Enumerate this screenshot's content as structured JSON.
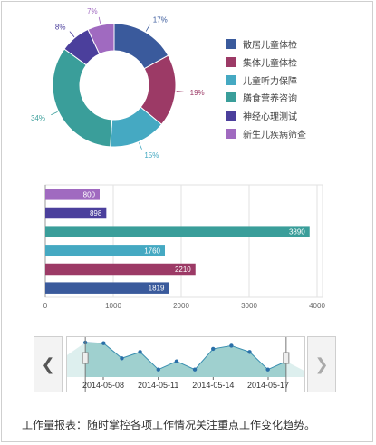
{
  "donut": {
    "slices": [
      {
        "label": "散居儿童体检",
        "value": 17,
        "pct_label": "17%",
        "color": "#3a5a9c"
      },
      {
        "label": "集体儿童体检",
        "value": 19,
        "pct_label": "19%",
        "color": "#9c3a66"
      },
      {
        "label": "儿童听力保障",
        "value": 15,
        "pct_label": "15%",
        "color": "#45a9c2"
      },
      {
        "label": "膳食营养咨询",
        "value": 34,
        "pct_label": "34%",
        "color": "#3a9e9a"
      },
      {
        "label": "神经心理测试",
        "value": 8,
        "pct_label": "8%",
        "color": "#4b3f9c"
      },
      {
        "label": "新生儿疾病筛查",
        "value": 7,
        "pct_label": "7%",
        "color": "#a06ac0"
      }
    ]
  },
  "bars": {
    "type": "bar",
    "orientation": "horizontal",
    "items": [
      {
        "value": 800,
        "label": "800",
        "color": "#a06ac0"
      },
      {
        "value": 898,
        "label": "898",
        "color": "#4b3f9c"
      },
      {
        "value": 3890,
        "label": "3890",
        "color": "#3a9e9a"
      },
      {
        "value": 1760,
        "label": "1760",
        "color": "#45a9c2"
      },
      {
        "value": 2210,
        "label": "2210",
        "color": "#9c3a66"
      },
      {
        "value": 1819,
        "label": "1819",
        "color": "#3a5a9c"
      }
    ],
    "xlim": [
      0,
      4000
    ],
    "ticks": [
      "0",
      "1000",
      "2000",
      "3000",
      "4000"
    ],
    "tick_values": [
      0,
      1000,
      2000,
      3000,
      4000
    ],
    "grid": true
  },
  "timeline": {
    "type": "area",
    "dates": [
      "2014-05-08",
      "2014-05-11",
      "2014-05-14",
      "2014-05-17"
    ],
    "values": [
      35,
      55,
      54,
      30,
      40,
      12,
      25,
      12,
      45,
      50,
      40,
      12,
      25,
      10
    ],
    "selection": [
      1,
      12
    ],
    "prev_label": "❮",
    "next_label": "❯",
    "area_color": "#9fd0cf",
    "line_color": "#3a8fb0",
    "point_color": "#2a6fa8"
  },
  "caption": "工作量报表：随时掌控各项工作情况关注重点工作变化趋势。"
}
